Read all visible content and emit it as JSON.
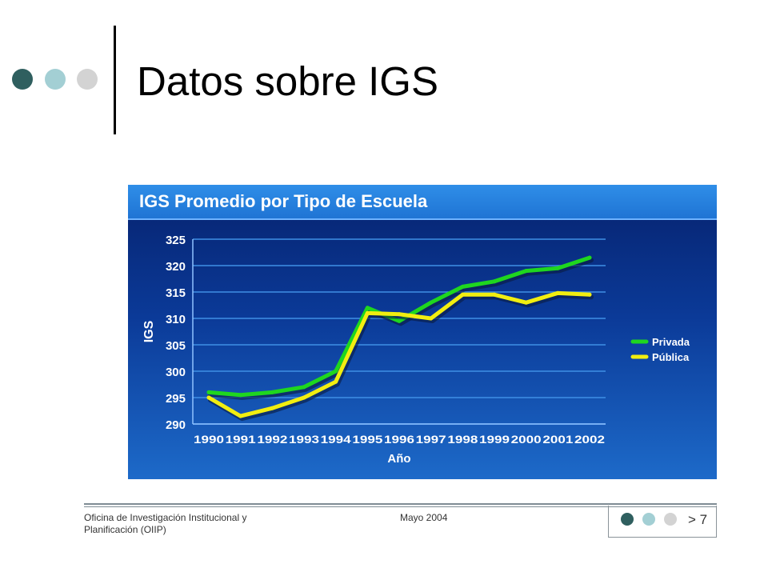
{
  "slide": {
    "title": "Datos sobre IGS",
    "colors": {
      "dot_dark": "#2f5f5f",
      "dot_teal": "#a3cfd4",
      "dot_light": "#d3d3d3"
    }
  },
  "footer": {
    "org_line1": "Oficina de Investigación Institucional y",
    "org_line2": "Planificación (OIIP)",
    "date": "Mayo 2004",
    "page": "> 7"
  },
  "chart_data": {
    "type": "line",
    "title": "IGS Promedio por Tipo de Escuela",
    "xlabel": "Año",
    "ylabel": "IGS",
    "categories": [
      "1990",
      "1991",
      "1992",
      "1993",
      "1994",
      "1995",
      "1996",
      "1997",
      "1998",
      "1999",
      "2000",
      "2001",
      "2002"
    ],
    "ylim": [
      290,
      325
    ],
    "yticks": [
      290,
      295,
      300,
      305,
      310,
      315,
      320,
      325
    ],
    "grid": true,
    "legend_position": "right",
    "series": [
      {
        "name": "Privada",
        "color": "#1fd61f",
        "values": [
          296.0,
          295.5,
          296.0,
          297.0,
          300.0,
          312.0,
          309.5,
          313.0,
          316.0,
          317.0,
          319.0,
          319.5,
          321.5
        ]
      },
      {
        "name": "Pública",
        "color": "#f2ee10",
        "values": [
          295.0,
          291.5,
          293.0,
          295.0,
          298.0,
          311.0,
          310.8,
          310.0,
          314.5,
          314.5,
          313.0,
          314.8,
          314.5
        ]
      }
    ]
  }
}
